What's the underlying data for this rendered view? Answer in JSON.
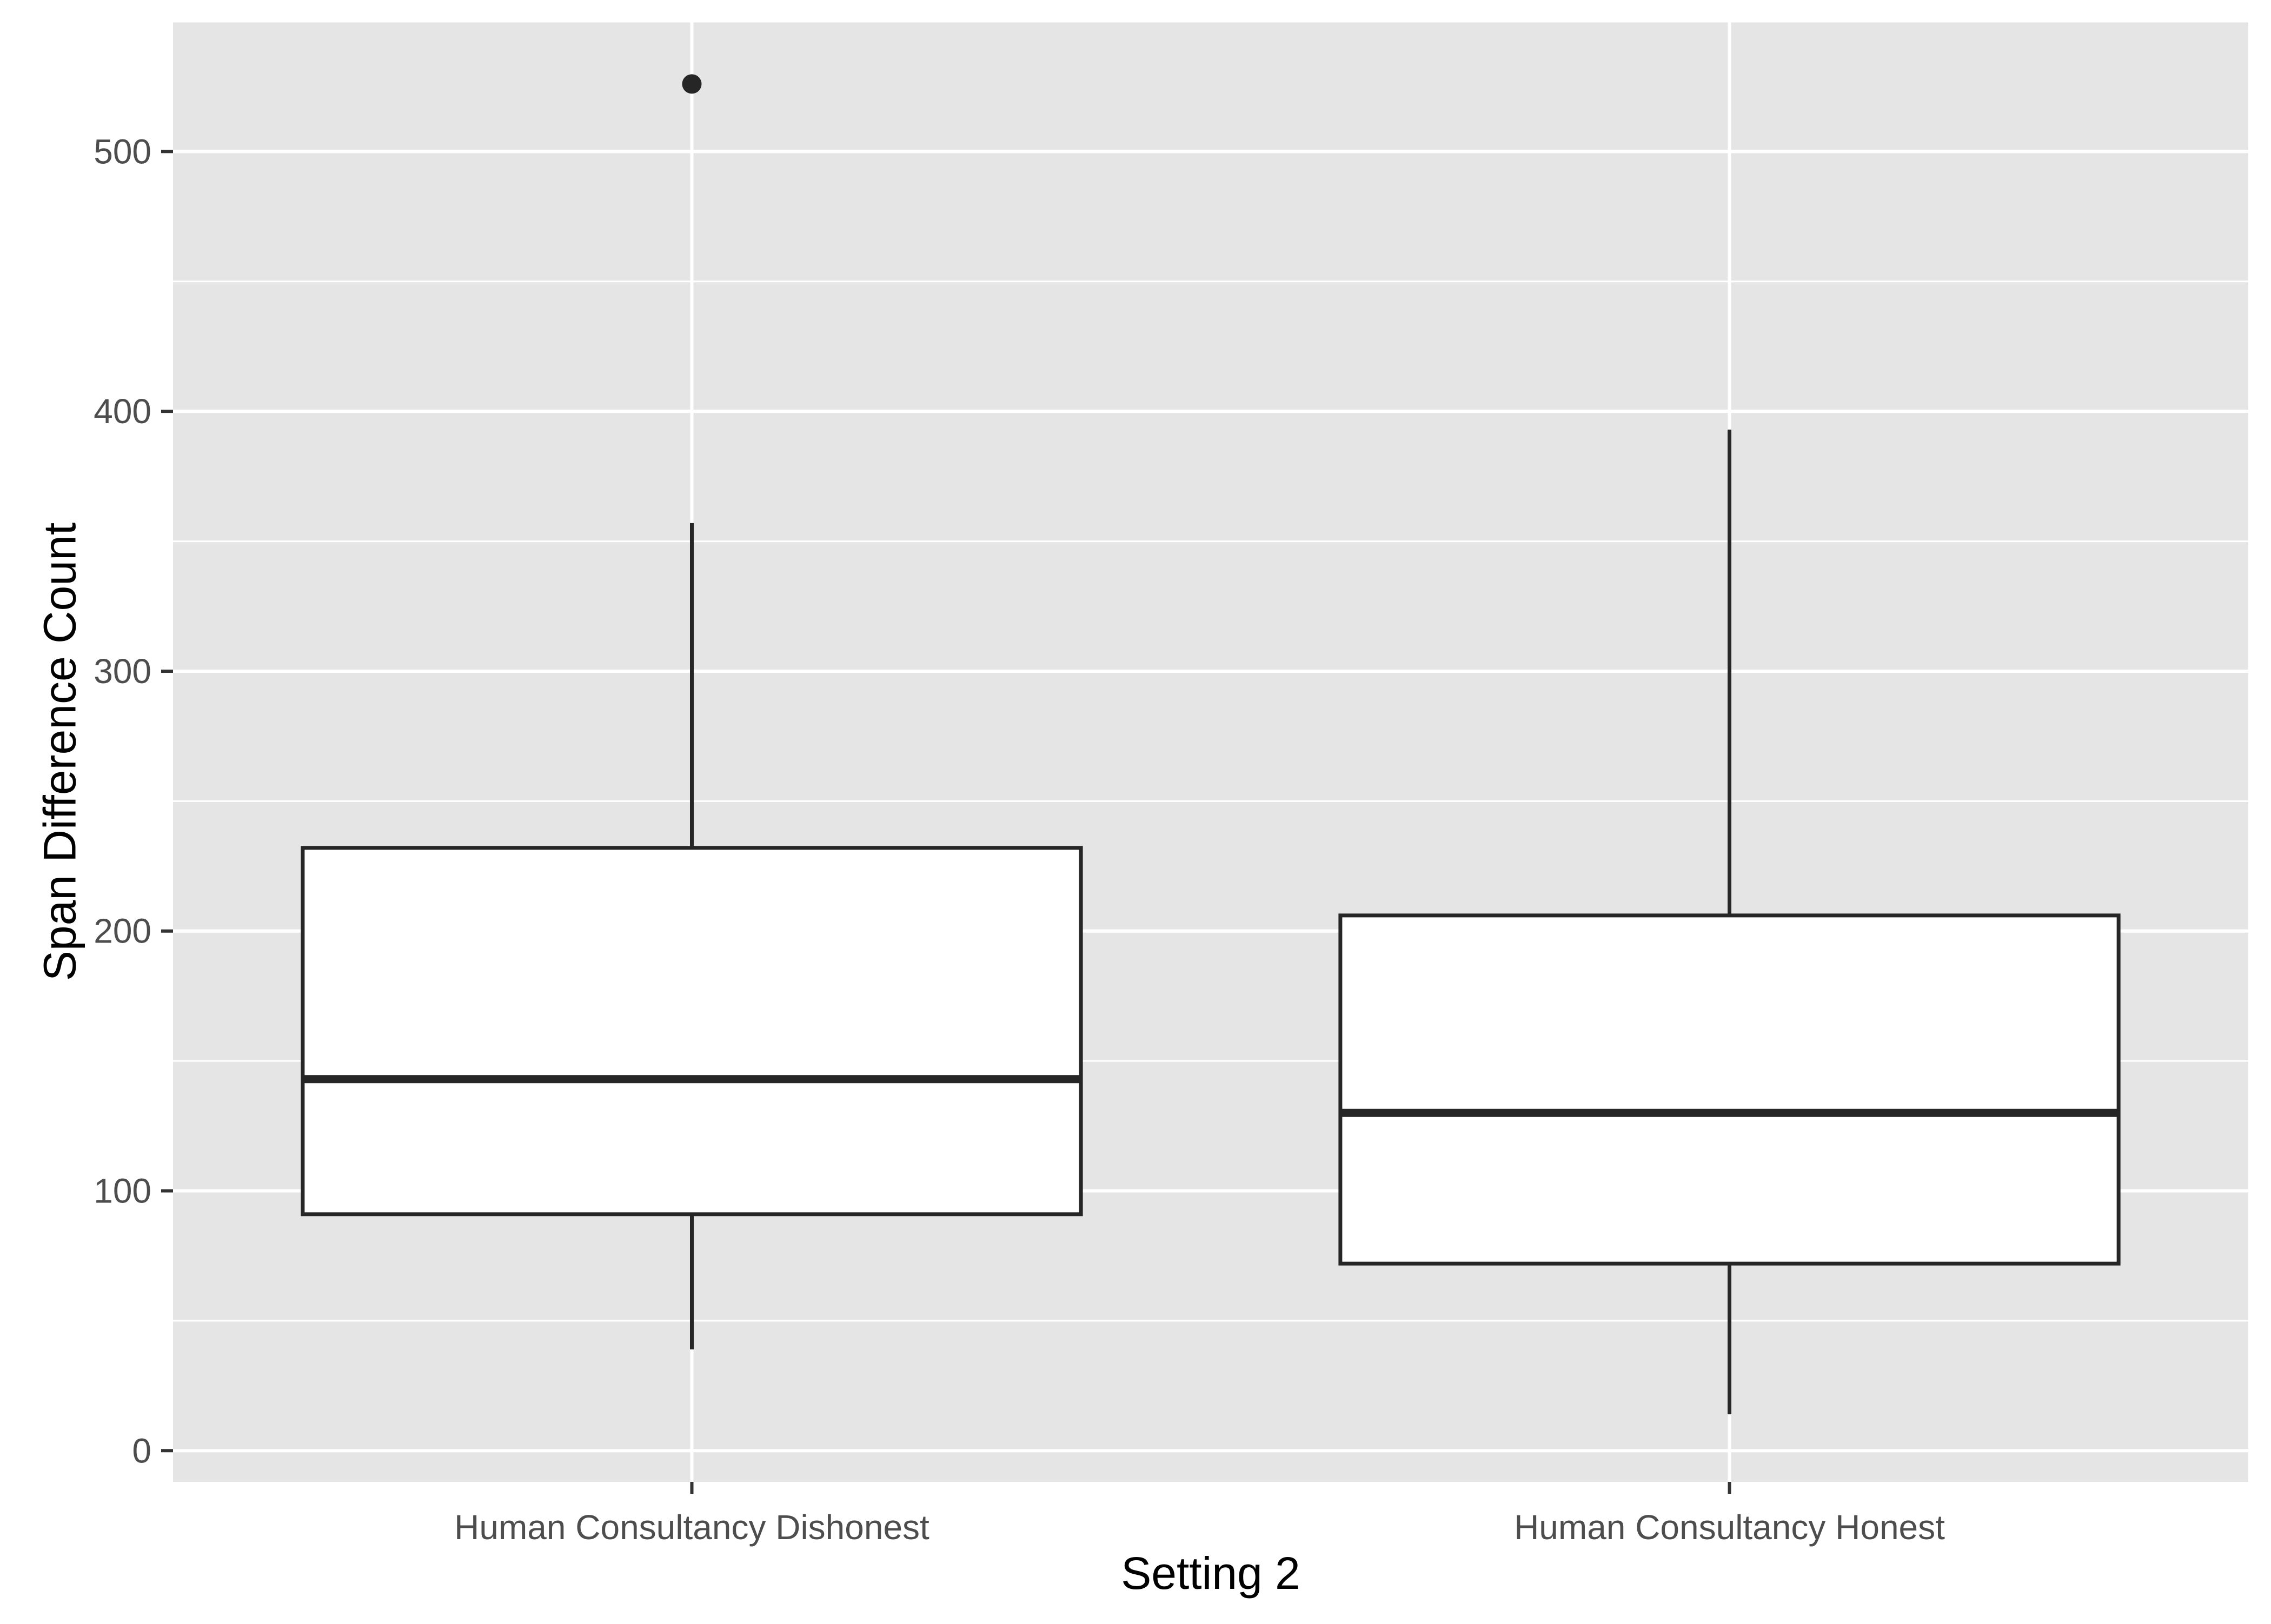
{
  "chart_data": {
    "type": "boxplot",
    "title": "",
    "xlabel": "Setting 2",
    "ylabel": "Span Difference Count",
    "ylim": [
      -12,
      550
    ],
    "yticks": [
      0,
      100,
      200,
      300,
      400,
      500
    ],
    "grid": true,
    "categories": [
      "Human Consultancy Dishonest",
      "Human Consultancy Honest"
    ],
    "boxes": [
      {
        "category": "Human Consultancy Dishonest",
        "whisker_low": 39,
        "q1": 91,
        "median": 143,
        "q3": 232,
        "whisker_high": 357,
        "outliers": [
          526
        ]
      },
      {
        "category": "Human Consultancy Honest",
        "whisker_low": 14,
        "q1": 72,
        "median": 130,
        "q3": 206,
        "whisker_high": 393,
        "outliers": []
      }
    ],
    "colors": {
      "panel_background": "#e5e5e5",
      "grid": "#ffffff",
      "box_fill": "#ffffff",
      "box_stroke": "#262626",
      "tick_mark": "#333333"
    }
  }
}
